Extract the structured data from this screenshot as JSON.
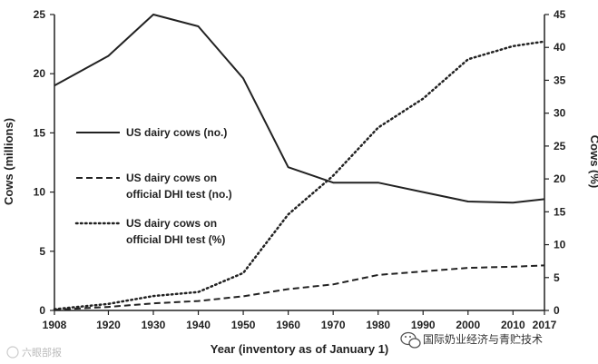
{
  "chart_data": {
    "type": "line",
    "title": "",
    "xlabel": "Year (inventory as of January 1)",
    "ylabel_left": "Cows (millions)",
    "ylabel_right": "Cows (%)",
    "x_ticks": [
      "1908",
      "1920",
      "1930",
      "1940",
      "1950",
      "1960",
      "1970",
      "1980",
      "1990",
      "2000",
      "2010",
      "2017"
    ],
    "y_left_ticks": [
      "0",
      "5",
      "10",
      "15",
      "20",
      "25"
    ],
    "y_right_ticks": [
      "0",
      "5",
      "10",
      "15",
      "20",
      "25",
      "30",
      "35",
      "40",
      "45"
    ],
    "xlim": [
      1908,
      2017
    ],
    "ylim_left": [
      0,
      25
    ],
    "ylim_right": [
      0,
      45
    ],
    "grid": false,
    "legend_position": "left-middle",
    "series": [
      {
        "name": "US dairy cows (no.)",
        "style": "solid",
        "axis": "left",
        "x": [
          1908,
          1920,
          1930,
          1940,
          1950,
          1960,
          1970,
          1980,
          1990,
          2000,
          2010,
          2017
        ],
        "values": [
          19.0,
          21.5,
          25.0,
          24.0,
          19.6,
          12.1,
          10.8,
          10.8,
          10.0,
          9.2,
          9.1,
          9.4
        ]
      },
      {
        "name": "US dairy cows on official DHI test (no.)",
        "name_line1": "US dairy cows on",
        "name_line2": "official DHI test (no.)",
        "style": "dashed",
        "axis": "left",
        "x": [
          1908,
          1920,
          1930,
          1940,
          1950,
          1960,
          1970,
          1980,
          1990,
          2000,
          2010,
          2017
        ],
        "values": [
          0.05,
          0.3,
          0.6,
          0.8,
          1.2,
          1.8,
          2.2,
          3.0,
          3.3,
          3.6,
          3.7,
          3.8
        ]
      },
      {
        "name": "US dairy cows on official DHI test (%)",
        "name_line1": "US dairy cows on",
        "name_line2": "official DHI test (%)",
        "style": "dotted",
        "axis": "right",
        "x": [
          1908,
          1920,
          1930,
          1940,
          1950,
          1960,
          1970,
          1980,
          1990,
          2000,
          2010,
          2017
        ],
        "values": [
          0.2,
          1.0,
          2.2,
          2.8,
          5.7,
          14.6,
          20.5,
          27.8,
          32.2,
          38.2,
          40.2,
          40.9
        ]
      }
    ]
  },
  "watermarks": {
    "bottom_left": "六眼部报",
    "bottom_right": "国际奶业经济与青贮技术"
  },
  "colors": {
    "line": "#222222",
    "axis": "#222222"
  }
}
